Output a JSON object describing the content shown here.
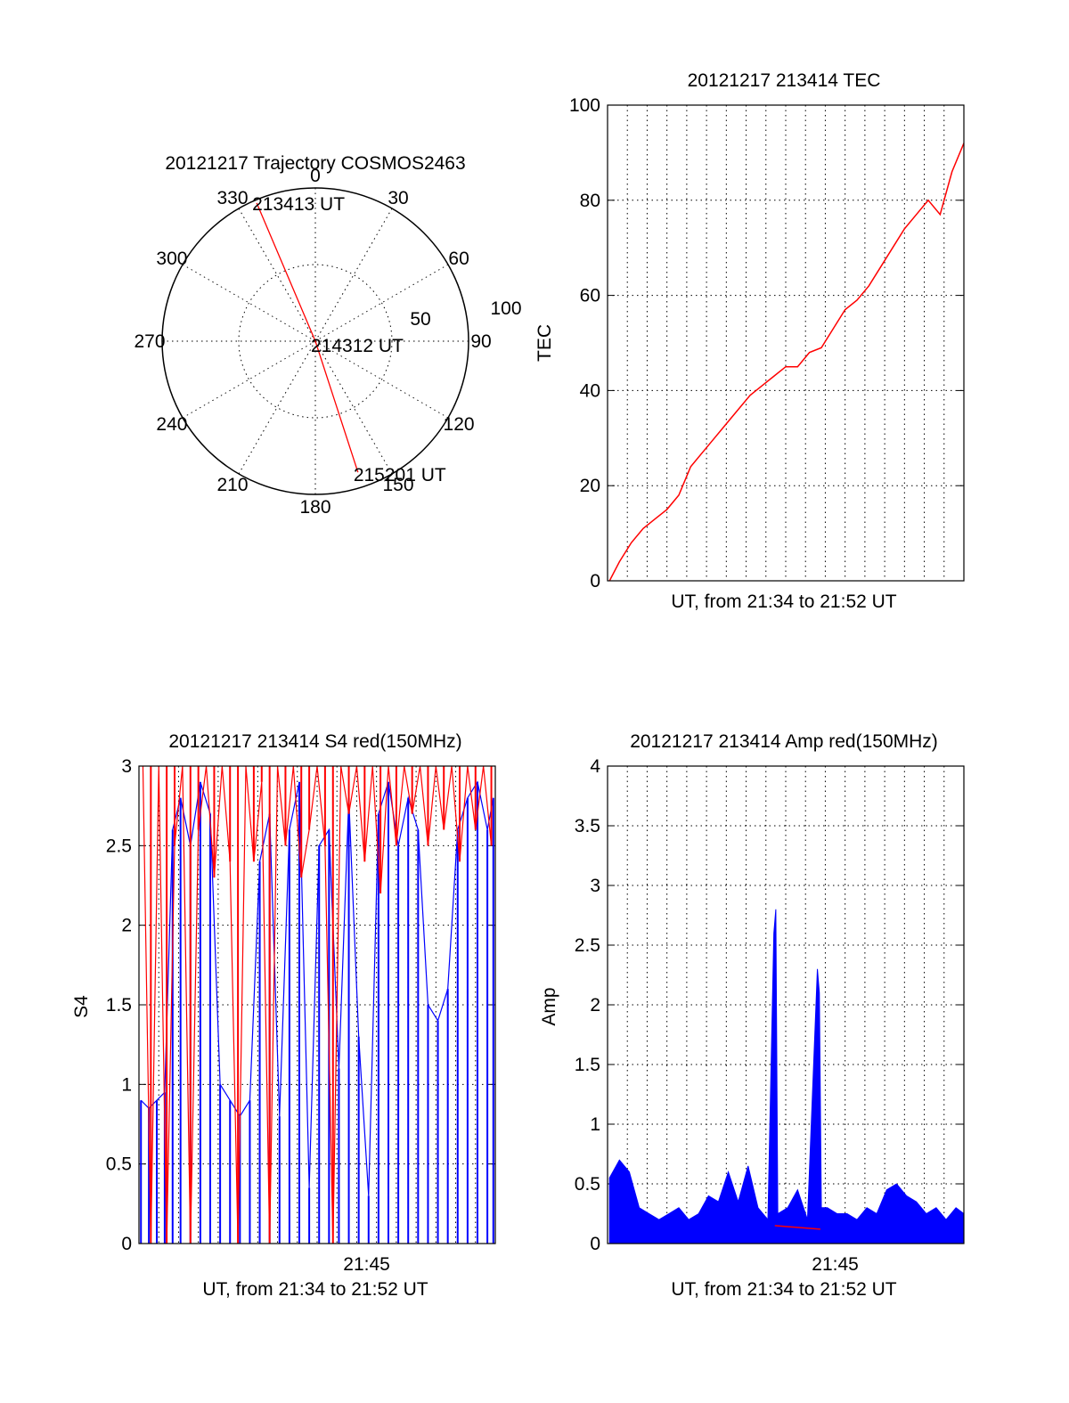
{
  "colors": {
    "red": "#ff0000",
    "blue": "#0000ff",
    "axis": "#000000"
  },
  "chart_data": [
    {
      "type": "polar",
      "title": "20121217 Trajectory COSMOS2463",
      "angle_labels": [
        "0",
        "30",
        "60",
        "90",
        "120",
        "150",
        "180",
        "210",
        "240",
        "270",
        "300",
        "330"
      ],
      "radial_labels": [
        "50",
        "100"
      ],
      "radial_range": [
        0,
        100
      ],
      "track": [
        {
          "time_label": "213413 UT",
          "azimuth_deg": 337,
          "radius": 98
        },
        {
          "time_label": "214312 UT",
          "azimuth_deg": 90,
          "radius": 0
        },
        {
          "time_label": "215201 UT",
          "azimuth_deg": 162,
          "radius": 90
        }
      ]
    },
    {
      "type": "line",
      "title": "20121217 213414 TEC",
      "xlabel": "UT, from 21:34 to 21:52 UT",
      "ylabel": "TEC",
      "ylim": [
        0,
        100
      ],
      "yticks": [
        "0",
        "20",
        "40",
        "60",
        "80",
        "100"
      ],
      "grid": true,
      "x_unit": "minutes after 21:34",
      "xlim": [
        0,
        18
      ],
      "series": [
        {
          "color": "#ff0000",
          "x": [
            0.1,
            0.6,
            1.2,
            1.8,
            2.4,
            3.0,
            3.6,
            4.2,
            4.8,
            5.4,
            6.0,
            6.6,
            7.2,
            7.8,
            8.4,
            9.0,
            9.6,
            10.2,
            10.8,
            11.4,
            12.0,
            12.6,
            13.2,
            13.8,
            14.4,
            15.0,
            15.6,
            16.2,
            16.8,
            17.4,
            18.0
          ],
          "y": [
            0,
            4,
            8,
            11,
            13,
            15,
            18,
            24,
            27,
            30,
            33,
            36,
            39,
            41,
            43,
            45,
            45,
            48,
            49,
            53,
            57,
            59,
            62,
            66,
            70,
            74,
            77,
            80,
            77,
            86,
            92
          ]
        }
      ]
    },
    {
      "type": "line",
      "title": "20121217 213414 S4 red(150MHz)",
      "xlabel": "UT, from 21:34 to 21:52 UT",
      "ylabel": "S4",
      "ylim": [
        0,
        3
      ],
      "yticks": [
        "0",
        "0.5",
        "1",
        "1.5",
        "2",
        "2.5",
        "3"
      ],
      "xticks": [
        {
          "label": "21:45",
          "x": 11.5
        }
      ],
      "grid": true,
      "x_unit": "minutes after 21:34",
      "xlim": [
        0,
        18
      ],
      "series": [
        {
          "color": "#0000ff",
          "x": [
            0.1,
            0.5,
            0.9,
            1.3,
            1.7,
            2.1,
            2.6,
            3.1,
            3.6,
            4.1,
            4.6,
            5.1,
            5.6,
            6.1,
            6.6,
            7.1,
            7.6,
            8.1,
            8.6,
            9.1,
            9.6,
            10.1,
            10.6,
            11.1,
            11.6,
            12.1,
            12.6,
            13.1,
            13.6,
            14.1,
            14.6,
            15.1,
            15.6,
            16.1,
            16.6,
            17.1,
            17.6,
            17.9
          ],
          "y": [
            0.9,
            0.85,
            0.9,
            0.95,
            2.6,
            2.8,
            2.5,
            2.9,
            2.7,
            1.0,
            0.9,
            0.8,
            0.9,
            2.4,
            2.7,
            0.8,
            2.6,
            2.9,
            0.35,
            2.5,
            2.6,
            1.1,
            2.8,
            1.3,
            0.3,
            2.7,
            2.9,
            2.5,
            2.8,
            2.6,
            1.5,
            1.4,
            1.6,
            2.6,
            2.8,
            2.9,
            2.6,
            2.8
          ]
        },
        {
          "color": "#ff0000",
          "x": [
            0.2,
            0.6,
            1.0,
            1.4,
            1.8,
            2.2,
            2.6,
            3.0,
            3.4,
            3.8,
            4.2,
            4.6,
            5.0,
            5.4,
            5.8,
            6.2,
            6.6,
            7.0,
            7.4,
            7.8,
            8.2,
            8.6,
            9.0,
            9.4,
            9.8,
            10.2,
            10.6,
            11.0,
            11.4,
            11.8,
            12.2,
            12.6,
            13.0,
            13.4,
            13.8,
            14.2,
            14.6,
            15.0,
            15.4,
            15.8,
            16.2,
            16.6,
            17.0,
            17.4,
            17.8
          ],
          "y": [
            3.0,
            0.0,
            3.0,
            0.0,
            2.5,
            3.0,
            0.0,
            2.6,
            3.0,
            2.3,
            3.0,
            2.4,
            0.0,
            3.0,
            2.4,
            2.9,
            0.0,
            3.0,
            2.5,
            3.0,
            2.3,
            2.6,
            3.0,
            2.5,
            0.0,
            3.0,
            2.7,
            3.0,
            2.4,
            3.0,
            2.2,
            3.0,
            2.5,
            3.0,
            2.7,
            3.0,
            2.5,
            3.0,
            2.6,
            3.0,
            2.4,
            3.0,
            2.6,
            3.0,
            2.5
          ]
        }
      ]
    },
    {
      "type": "line",
      "title": "20121217 213414 Amp red(150MHz)",
      "xlabel": "UT, from 21:34 to 21:52 UT",
      "ylabel": "Amp",
      "ylim": [
        0,
        4
      ],
      "yticks": [
        "0",
        "0.5",
        "1",
        "1.5",
        "2",
        "2.5",
        "3",
        "3.5",
        "4"
      ],
      "xticks": [
        {
          "label": "21:45",
          "x": 11.5
        }
      ],
      "grid": true,
      "x_unit": "minutes after 21:34",
      "xlim": [
        0,
        18
      ],
      "series": [
        {
          "color": "#0000ff",
          "x": [
            0.1,
            0.6,
            1.1,
            1.6,
            2.1,
            2.6,
            3.1,
            3.6,
            4.1,
            4.6,
            5.1,
            5.6,
            6.1,
            6.6,
            7.1,
            7.6,
            8.1,
            8.4,
            8.5,
            8.6,
            9.1,
            9.6,
            10.1,
            10.6,
            10.7,
            10.8,
            11.1,
            11.6,
            12.1,
            12.6,
            13.1,
            13.6,
            14.1,
            14.6,
            15.1,
            15.6,
            16.1,
            16.6,
            17.1,
            17.6,
            18.0
          ],
          "y": [
            0.55,
            0.7,
            0.6,
            0.3,
            0.25,
            0.2,
            0.25,
            0.3,
            0.2,
            0.25,
            0.4,
            0.35,
            0.6,
            0.35,
            0.65,
            0.3,
            0.2,
            2.6,
            2.8,
            0.25,
            0.3,
            0.45,
            0.2,
            2.3,
            2.1,
            0.3,
            0.3,
            0.25,
            0.25,
            0.2,
            0.3,
            0.25,
            0.45,
            0.5,
            0.4,
            0.35,
            0.25,
            0.3,
            0.2,
            0.3,
            0.25
          ]
        },
        {
          "color": "#ff0000",
          "x": [
            8.45,
            10.75
          ],
          "y": [
            0.15,
            0.12
          ]
        }
      ]
    }
  ]
}
